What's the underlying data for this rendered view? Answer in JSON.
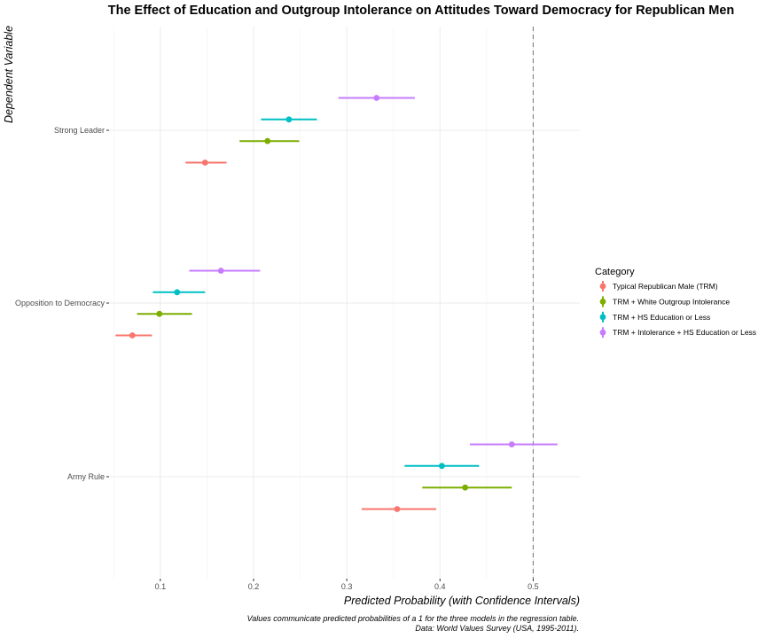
{
  "chart_data": {
    "type": "dot-whisker",
    "title": "The Effect of Education and Outgroup Intolerance on Attitudes Toward Democracy for Republican Men",
    "xlabel": "Predicted Probability (with Confidence Intervals)",
    "ylabel": "Dependent Variable",
    "xlim": [
      0.045,
      0.55
    ],
    "x_ticks": [
      0.1,
      0.2,
      0.3,
      0.4,
      0.5
    ],
    "x_tick_labels": [
      "0.1",
      "0.2",
      "0.3",
      "0.4",
      "0.5"
    ],
    "reference_line": 0.5,
    "grid": true,
    "categories": [
      "Strong Leader",
      "Opposition to Democracy",
      "Army Rule"
    ],
    "legend_title": "Category",
    "legend_position": "right",
    "series": [
      {
        "name": "Typical Republican Male (TRM)",
        "color": "#F8766D",
        "points": [
          {
            "category": "Strong Leader",
            "estimate": 0.148,
            "low": 0.127,
            "high": 0.171
          },
          {
            "category": "Opposition to Democracy",
            "estimate": 0.07,
            "low": 0.052,
            "high": 0.091
          },
          {
            "category": "Army Rule",
            "estimate": 0.354,
            "low": 0.316,
            "high": 0.396
          }
        ]
      },
      {
        "name": "TRM + White Outgroup Intolerance",
        "color": "#7CAE00",
        "points": [
          {
            "category": "Strong Leader",
            "estimate": 0.215,
            "low": 0.185,
            "high": 0.249
          },
          {
            "category": "Opposition to Democracy",
            "estimate": 0.099,
            "low": 0.075,
            "high": 0.134
          },
          {
            "category": "Army Rule",
            "estimate": 0.427,
            "low": 0.381,
            "high": 0.477
          }
        ]
      },
      {
        "name": "TRM + HS Education or Less",
        "color": "#00BFC4",
        "points": [
          {
            "category": "Strong Leader",
            "estimate": 0.238,
            "low": 0.208,
            "high": 0.268
          },
          {
            "category": "Opposition to Democracy",
            "estimate": 0.118,
            "low": 0.092,
            "high": 0.148
          },
          {
            "category": "Army Rule",
            "estimate": 0.402,
            "low": 0.362,
            "high": 0.442
          }
        ]
      },
      {
        "name": "TRM + Intolerance + HS Education or Less",
        "color": "#C77CFF",
        "points": [
          {
            "category": "Strong Leader",
            "estimate": 0.332,
            "low": 0.291,
            "high": 0.373
          },
          {
            "category": "Opposition to Democracy",
            "estimate": 0.165,
            "low": 0.131,
            "high": 0.207
          },
          {
            "category": "Army Rule",
            "estimate": 0.477,
            "low": 0.432,
            "high": 0.526
          }
        ]
      }
    ],
    "caption": [
      "Values communicate predicted probabilities of a 1 for the three models in the regression table.",
      "Data: World Values Survey (USA, 1995-2011)."
    ]
  }
}
